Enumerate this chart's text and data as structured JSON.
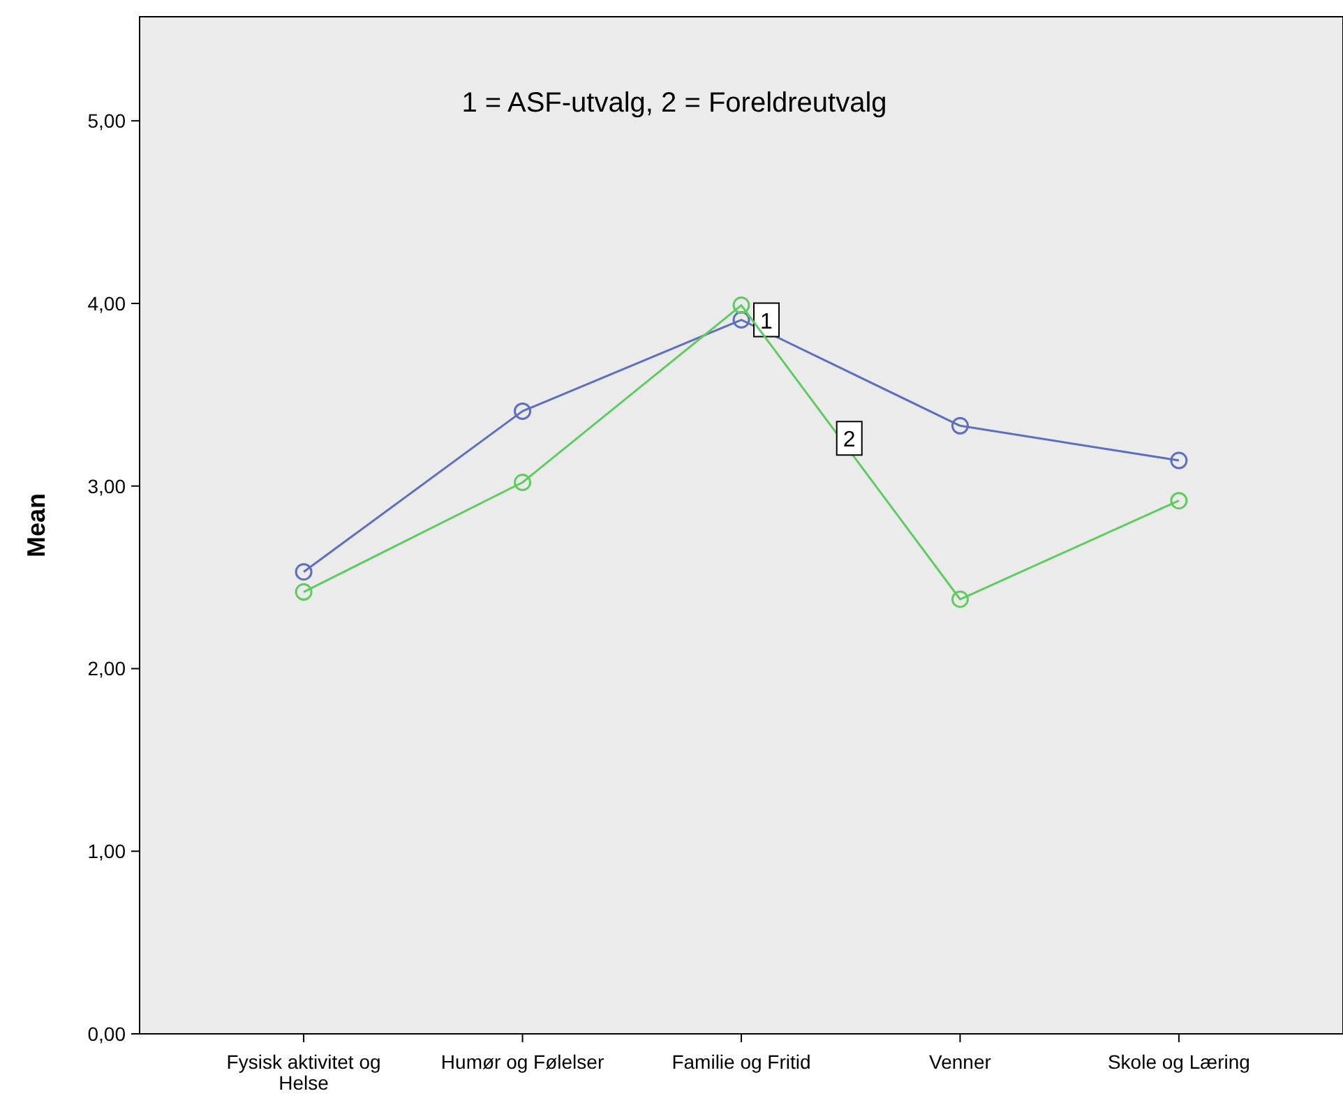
{
  "chart_data": {
    "type": "line",
    "annotations": [
      "1 = ASF-utvalg, 2 = Foreldreutvalg"
    ],
    "ylabel": "Mean",
    "categories": [
      "Fysisk aktivitet og Helse",
      "Humør og Følelser",
      "Familie og Fritid",
      "Venner",
      "Skole og Læring"
    ],
    "series": [
      {
        "name": "1",
        "color": "#5d6fbf",
        "values": [
          2.53,
          3.41,
          3.91,
          3.33,
          3.14
        ]
      },
      {
        "name": "2",
        "color": "#5fcc5f",
        "values": [
          2.42,
          3.02,
          3.99,
          2.38,
          2.92
        ]
      }
    ],
    "ylim": [
      0,
      5.57
    ],
    "yticks": [
      {
        "value": 0,
        "label": "0,00"
      },
      {
        "value": 1,
        "label": "1,00"
      },
      {
        "value": 2,
        "label": "2,00"
      },
      {
        "value": 3,
        "label": "3,00"
      },
      {
        "value": 4,
        "label": "4,00"
      },
      {
        "value": 5,
        "label": "5,00"
      }
    ],
    "marker": "circle",
    "grid": false,
    "legend": false
  }
}
